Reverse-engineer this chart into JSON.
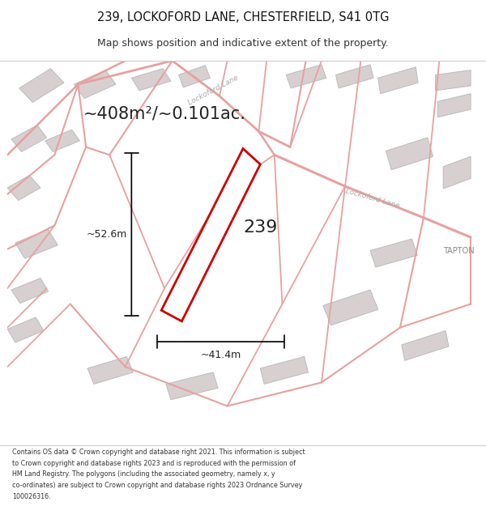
{
  "title_line1": "239, LOCKOFORD LANE, CHESTERFIELD, S41 0TG",
  "title_line2": "Map shows position and indicative extent of the property.",
  "area_text": "~408m²/~0.101ac.",
  "label_239": "239",
  "dim_height": "~52.6m",
  "dim_width": "~41.4m",
  "road_label_upper": "Lockoford Lane",
  "road_label_lower": "Lockoford Lane",
  "tapton_label": "TAPTON",
  "footer_lines": [
    "Contains OS data © Crown copyright and database right 2021. This information is subject",
    "to Crown copyright and database rights 2023 and is reproduced with the permission of",
    "HM Land Registry. The polygons (including the associated geometry, namely x, y",
    "co-ordinates) are subject to Crown copyright and database rights 2023 Ordnance Survey",
    "100026316."
  ],
  "map_bg": "#f5f0f0",
  "plot_color_fill": "#ffffff",
  "plot_color_edge": "#cc0000",
  "road_line_color": "#e8a0a0",
  "building_color": "#d8d0d0",
  "text_color": "#222222"
}
